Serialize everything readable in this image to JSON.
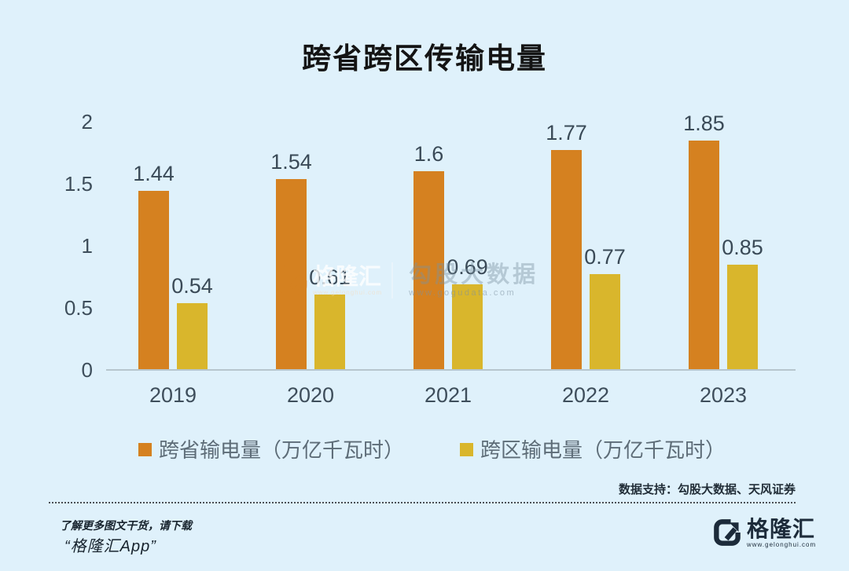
{
  "title": "跨省跨区传输电量",
  "chart_data": {
    "type": "bar",
    "title": "跨省跨区传输电量",
    "categories": [
      "2019",
      "2020",
      "2021",
      "2022",
      "2023"
    ],
    "series": [
      {
        "name": "跨省输电量（万亿千瓦时）",
        "color": "#d58120",
        "values": [
          1.44,
          1.54,
          1.6,
          1.77,
          1.85
        ]
      },
      {
        "name": "跨区输电量（万亿千瓦时）",
        "color": "#d9b62c",
        "values": [
          0.54,
          0.61,
          0.69,
          0.77,
          0.85
        ]
      }
    ],
    "xlabel": "",
    "ylabel": "",
    "ylim": [
      0,
      2
    ],
    "yticks": [
      2,
      1.5,
      1,
      0.5,
      0
    ],
    "grid": false,
    "legend_position": "bottom"
  },
  "watermark": {
    "brand": "格隆汇",
    "brand_url": "www.gelonghui.com",
    "partner": "勾股大数据",
    "partner_url": "www.gogudata.com"
  },
  "footer": {
    "data_support": "数据支持：勾股大数据、天风证券",
    "promo_line1": "了解更多图文干货，请下载",
    "promo_line2": "“格隆汇App”",
    "logo_text": "格隆汇",
    "logo_url": "www.gelonghui.com"
  },
  "colors": {
    "background": "#dff1fb",
    "axis_text": "#3e4e5b",
    "value_label": "#3a4a57",
    "legend_text": "#5d6c77",
    "axis_line": "#b7c6ce",
    "footer_navy": "#1c2b3a",
    "series_orange": "#d58120",
    "series_yellow": "#d9b62c"
  }
}
